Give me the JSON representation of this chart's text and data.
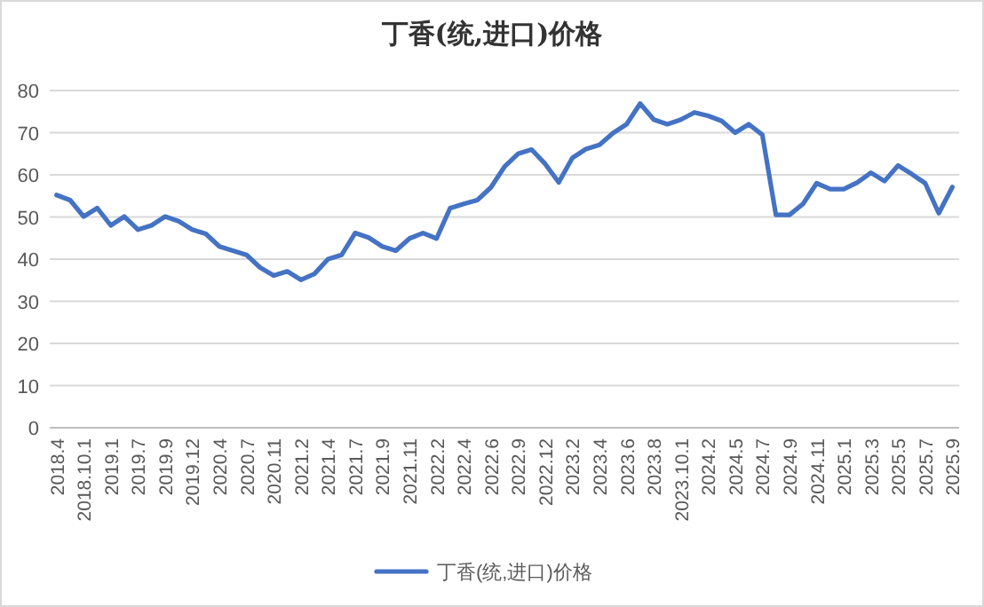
{
  "chart_data": {
    "type": "line",
    "title": "丁香(统,进口)价格",
    "categories": [
      "2018.4",
      null,
      "2018.10.1",
      null,
      "2019.1",
      null,
      "2019.7",
      null,
      "2019.9",
      null,
      "2019.12",
      null,
      "2020.4",
      null,
      "2020.7",
      null,
      "2020.11",
      null,
      "2021.2",
      null,
      "2021.4",
      null,
      "2021.7",
      null,
      "2021.9",
      null,
      "2021.11",
      null,
      "2022.2",
      null,
      "2022.4",
      null,
      "2022.6",
      null,
      "2022.9",
      null,
      "2022.12",
      null,
      "2023.2",
      null,
      "2023.4",
      null,
      "2023.6",
      null,
      "2023.8",
      null,
      "2023.10.1",
      null,
      "2024.2",
      null,
      "2024.5",
      null,
      "2024.7",
      null,
      "2024.9",
      null,
      "2024.11",
      null,
      "2025.1",
      null,
      "2025.3",
      null,
      "2025.5",
      null,
      "2025.7",
      null,
      "2025.9"
    ],
    "series": [
      {
        "name": "丁香(统,进口)价格",
        "color": "#4472c4",
        "values": [
          55.2,
          54,
          50.1,
          52.1,
          48,
          50.1,
          47,
          48,
          50.1,
          49,
          47,
          46,
          43,
          42,
          41,
          38,
          36.1,
          37.1,
          35.1,
          36.5,
          40,
          41,
          46.2,
          45.1,
          43,
          42,
          44.9,
          46.2,
          44.9,
          52.1,
          53.1,
          54,
          57,
          61.9,
          65,
          66,
          62.6,
          58.2,
          64,
          66.1,
          67.1,
          69.9,
          72,
          76.9,
          73.1,
          72,
          73.1,
          74.8,
          74,
          72.8,
          70,
          72,
          69.5,
          50.5,
          50.5,
          53.1,
          58,
          56.6,
          56.6,
          58.2,
          60.5,
          58.5,
          62.2,
          60.2,
          58,
          50.9,
          57.1
        ]
      }
    ],
    "ylim": [
      0,
      80
    ],
    "yticks": [
      0,
      10,
      20,
      30,
      40,
      50,
      60,
      70,
      80
    ],
    "grid": "y",
    "legend": "bottom"
  }
}
